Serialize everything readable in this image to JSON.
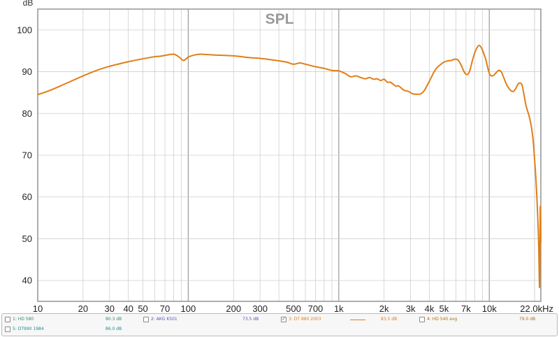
{
  "chart_data": {
    "type": "line",
    "title": "SPL",
    "ylabel": "dB",
    "xlabel": "",
    "x_scale": "log",
    "xlim": [
      10,
      22000
    ],
    "ylim": [
      35,
      105
    ],
    "grid": true,
    "x_tick_labels": [
      "10",
      "20",
      "30",
      "40",
      "50",
      "70",
      "100",
      "200",
      "300",
      "500",
      "700",
      "1k",
      "2k",
      "3k",
      "4k",
      "5k",
      "7k",
      "10k",
      "22.0kHz"
    ],
    "x_tick_values": [
      10,
      20,
      30,
      40,
      50,
      70,
      100,
      200,
      300,
      500,
      700,
      1000,
      2000,
      3000,
      4000,
      5000,
      7000,
      10000,
      22000
    ],
    "y_tick_labels": [
      "40",
      "50",
      "60",
      "70",
      "80",
      "90",
      "100"
    ],
    "y_tick_values": [
      40,
      50,
      60,
      70,
      80,
      90,
      100
    ],
    "series": [
      {
        "name": "3: DT 880 2003",
        "color": "#e07f16",
        "x": [
          10,
          12,
          15,
          20,
          25,
          30,
          35,
          40,
          50,
          60,
          65,
          70,
          80,
          87,
          93,
          100,
          110,
          120,
          135,
          150,
          200,
          250,
          300,
          350,
          400,
          450,
          500,
          550,
          600,
          700,
          800,
          900,
          1000,
          1100,
          1200,
          1300,
          1400,
          1500,
          1600,
          1700,
          1800,
          1900,
          2000,
          2100,
          2200,
          2300,
          2400,
          2500,
          2700,
          2900,
          3100,
          3300,
          3500,
          3700,
          3900,
          4100,
          4300,
          4500,
          4700,
          5000,
          5300,
          5600,
          5900,
          6200,
          6500,
          6800,
          7100,
          7400,
          7700,
          8000,
          8300,
          8600,
          8900,
          9200,
          9500,
          10000,
          10500,
          11000,
          11500,
          12000,
          12500,
          13000,
          13500,
          14000,
          14500,
          15000,
          15500,
          16000,
          16500,
          17000,
          17500,
          18000,
          18500,
          19000,
          19500,
          20000,
          20500,
          21000,
          21300,
          21600,
          21800,
          22000
        ],
        "y": [
          84.5,
          85.5,
          87.0,
          89.0,
          90.4,
          91.3,
          91.9,
          92.4,
          93.1,
          93.6,
          93.7,
          93.9,
          94.2,
          93.5,
          92.7,
          93.5,
          94.0,
          94.2,
          94.1,
          94.0,
          93.8,
          93.4,
          93.2,
          92.9,
          92.6,
          92.3,
          91.8,
          92.1,
          91.8,
          91.2,
          90.8,
          90.3,
          90.2,
          89.6,
          88.8,
          89.0,
          88.6,
          88.3,
          88.6,
          88.2,
          88.3,
          87.9,
          88.2,
          87.5,
          87.5,
          87.0,
          86.5,
          86.6,
          85.6,
          85.3,
          84.7,
          84.6,
          84.7,
          85.5,
          87.0,
          88.5,
          90.0,
          91.0,
          91.6,
          92.3,
          92.6,
          92.7,
          93.0,
          92.8,
          91.6,
          90.0,
          89.3,
          90.1,
          92.5,
          94.5,
          95.8,
          96.3,
          95.6,
          94.3,
          92.8,
          89.6,
          89.0,
          89.6,
          90.3,
          90.0,
          88.5,
          87.0,
          86.0,
          85.4,
          85.3,
          86.0,
          87.0,
          87.3,
          86.8,
          84.5,
          82.0,
          80.5,
          79.0,
          77.0,
          74.0,
          69.0,
          63.0,
          55.0,
          48.0,
          38.5,
          57.5,
          49.0
        ]
      }
    ]
  },
  "legend": [
    {
      "label": "1: HD 580",
      "value": "80.3 dB",
      "checked": false,
      "label_color": "#2f8c6a",
      "value_color": "#2f8c6a"
    },
    {
      "label": "2: AKG K501",
      "value": "73.5 dB",
      "checked": false,
      "label_color": "#5454b8",
      "value_color": "#5454b8"
    },
    {
      "label": "3: DT 880 2003",
      "value": "83.5 dB",
      "checked": true,
      "label_color": "#e07f16",
      "value_color": "#e07f16"
    },
    {
      "label": "4: HD 540 avg",
      "value": "79.0 dB",
      "checked": false,
      "label_color": "#b06a10",
      "value_color": "#b06a10"
    },
    {
      "label": "5: DT990 1984",
      "value": "86.0 dB",
      "checked": false,
      "label_color": "#1a8f8a",
      "value_color": "#1a8f8a"
    }
  ]
}
